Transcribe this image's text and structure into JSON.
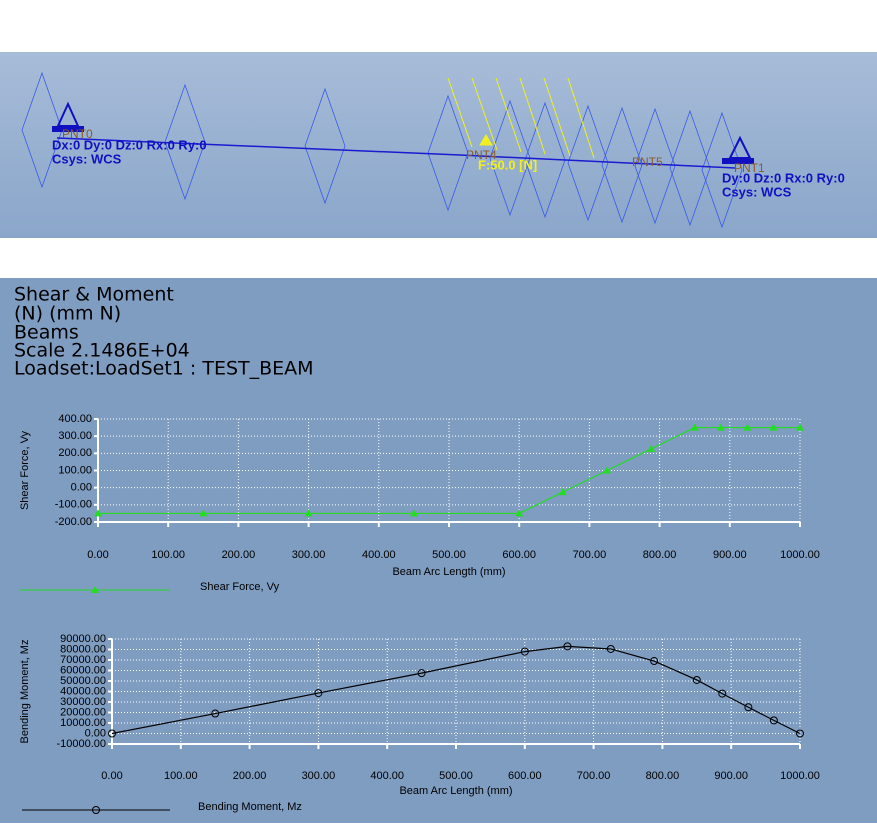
{
  "model_view": {
    "points": [
      "PNT0",
      "PNT4",
      "PNT5",
      "PNT1"
    ],
    "constraint_left": "Dx:0 Dy:0 Dz:0 Rx:0 Ry:0",
    "csys_left": "Csys: WCS",
    "load": "F:50.0 [N]",
    "constraint_right": "Dy:0 Dz:0 Rx:0 Ry:0",
    "csys_right": "Csys: WCS"
  },
  "results_header": {
    "lines": [
      "Shear & Moment",
      "(N)  (mm N)",
      "Beams",
      "Scale  2.1486E+04",
      "Loadset:LoadSet1 :  TEST_BEAM"
    ]
  },
  "chart_data": [
    {
      "type": "line",
      "xlabel": "Beam Arc Length (mm)",
      "ylabel": "Shear Force, Vy",
      "grid": true,
      "x": [
        0,
        150,
        300,
        450,
        600,
        662,
        725,
        788,
        850,
        887,
        925,
        962,
        1000
      ],
      "series": [
        {
          "name": "Shear Force, Vy",
          "color": "#22dd22",
          "marker": "triangle",
          "values": [
            -150,
            -150,
            -150,
            -150,
            -150,
            -26,
            100,
            226,
            350,
            350,
            350,
            350,
            350
          ]
        }
      ],
      "xlim": [
        0,
        1000
      ],
      "ylim": [
        -200,
        400
      ],
      "xticks": [
        {
          "value": 0,
          "label": "0.00"
        },
        {
          "value": 100,
          "label": "100.00"
        },
        {
          "value": 200,
          "label": "200.00"
        },
        {
          "value": 300,
          "label": "300.00"
        },
        {
          "value": 400,
          "label": "400.00"
        },
        {
          "value": 500,
          "label": "500.00"
        },
        {
          "value": 600,
          "label": "600.00"
        },
        {
          "value": 700,
          "label": "700.00"
        },
        {
          "value": 800,
          "label": "800.00"
        },
        {
          "value": 900,
          "label": "900.00"
        },
        {
          "value": 1000,
          "label": "1000.00"
        }
      ],
      "yticks": [
        {
          "value": -200,
          "label": "-200.00"
        },
        {
          "value": -100,
          "label": "-100.00"
        },
        {
          "value": 0,
          "label": "0.00"
        },
        {
          "value": 100,
          "label": "100.00"
        },
        {
          "value": 200,
          "label": "200.00"
        },
        {
          "value": 300,
          "label": "300.00"
        },
        {
          "value": 400,
          "label": "400.00"
        }
      ]
    },
    {
      "type": "line",
      "xlabel": "Beam Arc Length (mm)",
      "ylabel": "Bending Moment, Mz",
      "grid": true,
      "x": [
        0,
        150,
        300,
        450,
        600,
        662,
        725,
        788,
        850,
        887,
        925,
        962,
        1000
      ],
      "series": [
        {
          "name": "Bending Moment, Mz",
          "color": "#000000",
          "marker": "circle",
          "values": [
            0,
            19000,
            38500,
            57500,
            78000,
            83000,
            80500,
            69000,
            51000,
            38000,
            25000,
            12500,
            0
          ]
        }
      ],
      "xlim": [
        0,
        1000
      ],
      "ylim": [
        -10000,
        90000
      ],
      "xticks": [
        {
          "value": 0,
          "label": "0.00"
        },
        {
          "value": 100,
          "label": "100.00"
        },
        {
          "value": 200,
          "label": "200.00"
        },
        {
          "value": 300,
          "label": "300.00"
        },
        {
          "value": 400,
          "label": "400.00"
        },
        {
          "value": 500,
          "label": "500.00"
        },
        {
          "value": 600,
          "label": "600.00"
        },
        {
          "value": 700,
          "label": "700.00"
        },
        {
          "value": 800,
          "label": "800.00"
        },
        {
          "value": 900,
          "label": "900.00"
        },
        {
          "value": 1000,
          "label": "1000.00"
        }
      ],
      "yticks": [
        {
          "value": -10000,
          "label": "-10000.00"
        },
        {
          "value": 0,
          "label": "0.00"
        },
        {
          "value": 10000,
          "label": "10000.00"
        },
        {
          "value": 20000,
          "label": "20000.00"
        },
        {
          "value": 30000,
          "label": "30000.00"
        },
        {
          "value": 40000,
          "label": "40000.00"
        },
        {
          "value": 50000,
          "label": "50000.00"
        },
        {
          "value": 60000,
          "label": "60000.00"
        },
        {
          "value": 70000,
          "label": "70000.00"
        },
        {
          "value": 80000,
          "label": "80000.00"
        },
        {
          "value": 90000,
          "label": "90000.00"
        }
      ]
    }
  ]
}
